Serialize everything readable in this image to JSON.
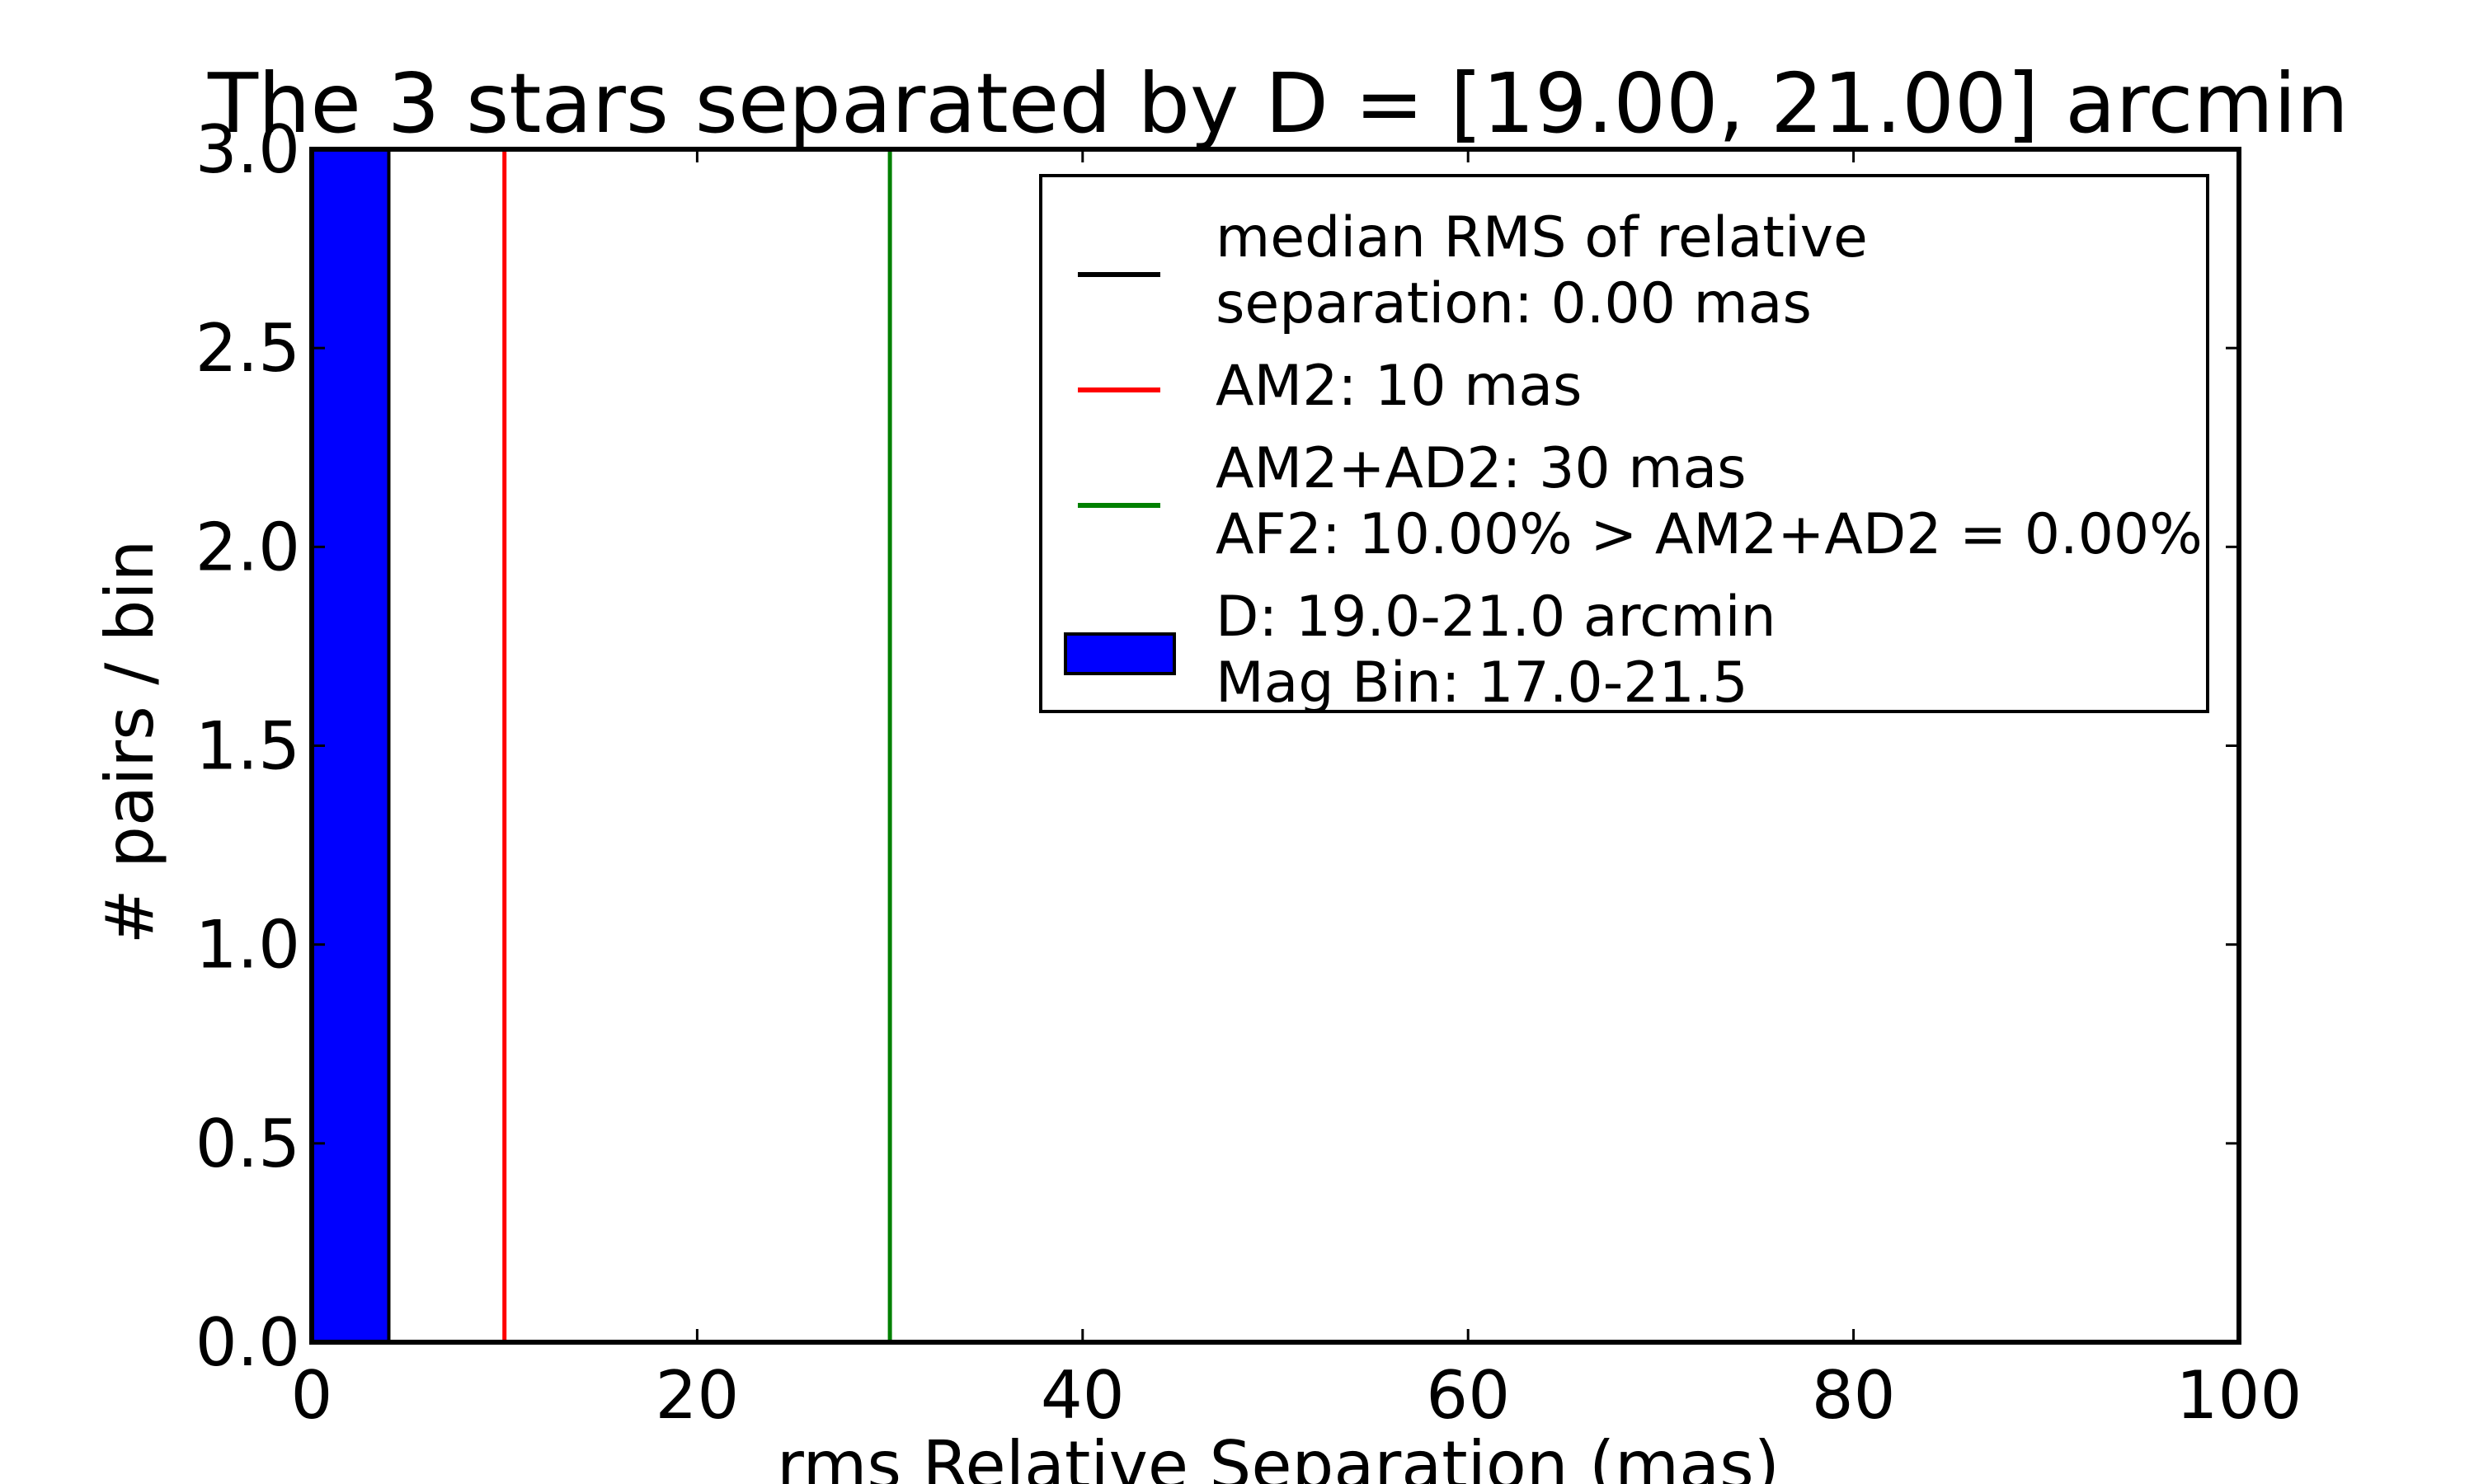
{
  "chart_data": {
    "type": "bar",
    "title": "The 3 stars separated by D = [19.00, 21.00] arcmin",
    "xlabel": "rms Relative Separation (mas)",
    "ylabel": "# pairs / bin",
    "xlim": [
      0,
      100
    ],
    "ylim": [
      0,
      3
    ],
    "xticks": [
      "0",
      "20",
      "40",
      "60",
      "80",
      "100"
    ],
    "yticks": [
      "0.0",
      "0.5",
      "1.0",
      "1.5",
      "2.0",
      "2.5",
      "3.0"
    ],
    "histogram": {
      "bins": [
        {
          "x0": 0,
          "x1": 4,
          "count": 3
        }
      ],
      "color": "#0000ff"
    },
    "vlines": [
      {
        "x": 0.0,
        "color": "#000000"
      },
      {
        "x": 10,
        "color": "#ff0000"
      },
      {
        "x": 30,
        "color": "#008000"
      }
    ],
    "legend": {
      "placement": "top-right",
      "entries": [
        {
          "kind": "line",
          "color": "#000000",
          "lines": [
            "median RMS of relative",
            "separation: 0.00 mas"
          ]
        },
        {
          "kind": "line",
          "color": "#ff0000",
          "lines": [
            "AM2: 10 mas"
          ]
        },
        {
          "kind": "line",
          "color": "#008000",
          "lines": [
            "AM2+AD2: 30 mas",
            "AF2: 10.00% > AM2+AD2 = 0.00%"
          ]
        },
        {
          "kind": "patch",
          "color": "#0000ff",
          "lines": [
            "D: 19.0-21.0 arcmin",
            "Mag Bin: 17.0-21.5"
          ]
        }
      ]
    }
  }
}
